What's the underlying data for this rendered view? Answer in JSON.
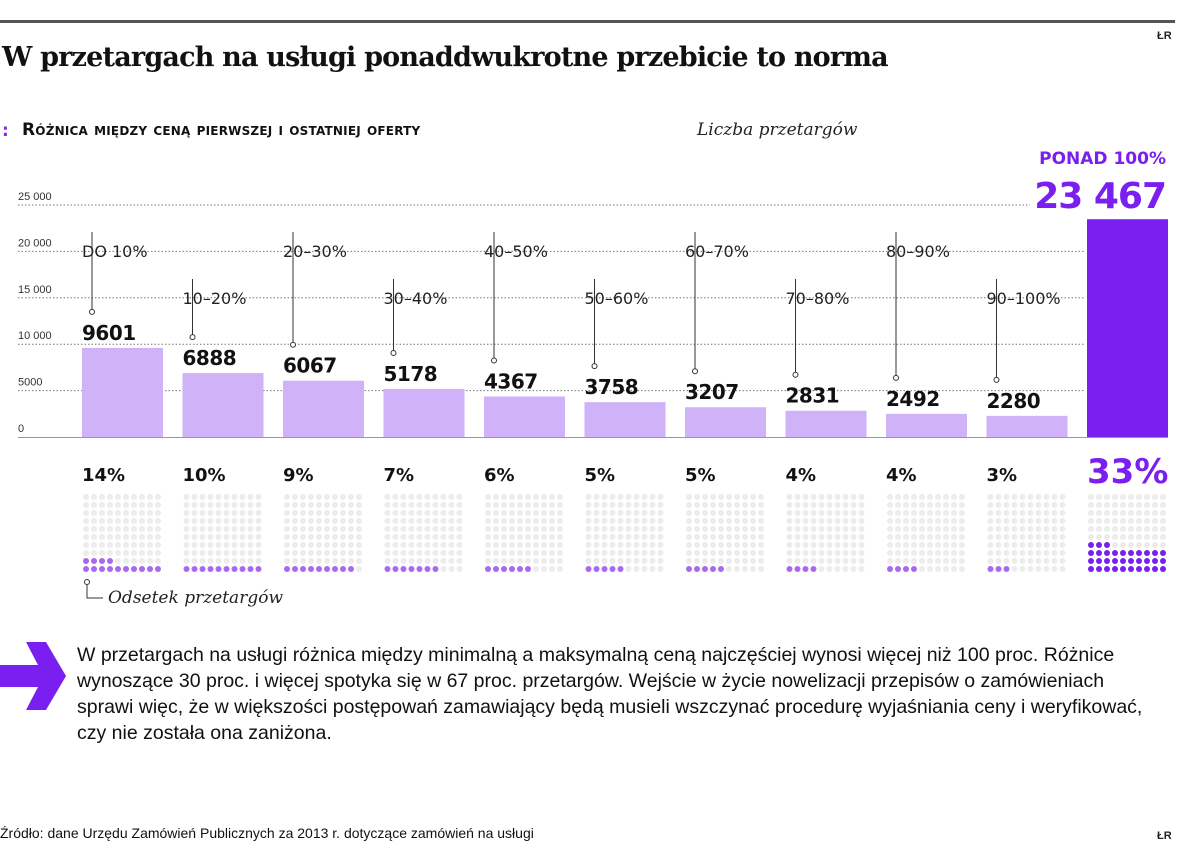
{
  "header": {
    "title": "W przetargach na usługi ponaddwukrotne przebicie to norma",
    "logo": "ŁR"
  },
  "chart_data": {
    "type": "bar",
    "title": "Różnica między ceną pierwszej i ostatniej oferty",
    "ylabel": "Liczba przetargów",
    "ylim": [
      0,
      25000
    ],
    "yticks": [
      0,
      5000,
      10000,
      15000,
      20000,
      25000
    ],
    "ytick_labels": [
      "0",
      "5000",
      "10 000",
      "15 000",
      "20 000",
      "25 000"
    ],
    "grid": true,
    "categories": [
      "DO 10%",
      "10–20%",
      "20–30%",
      "30–40%",
      "40–50%",
      "50–60%",
      "60–70%",
      "70–80%",
      "80–90%",
      "90–100%",
      "PONAD 100%"
    ],
    "values": [
      9601,
      6888,
      6067,
      5178,
      4367,
      3758,
      3207,
      2831,
      2492,
      2280,
      23467
    ],
    "value_labels": [
      "9601",
      "6888",
      "6067",
      "5178",
      "4367",
      "3758",
      "3207",
      "2831",
      "2492",
      "2280",
      "23 467"
    ],
    "share_label": "Odsetek przetargów",
    "share_percent": [
      14,
      10,
      9,
      7,
      6,
      5,
      5,
      4,
      4,
      3,
      33
    ],
    "share_labels": [
      "14%",
      "10%",
      "9%",
      "7%",
      "6%",
      "5%",
      "5%",
      "4%",
      "4%",
      "3%",
      "33%"
    ],
    "highlight_index": 10,
    "colors": {
      "bar": "#cfb2f7",
      "highlight": "#7a1ff0",
      "dot_empty": "#ececec",
      "dot_filled": "#a868f0",
      "dot_highlight": "#7a1ff0"
    }
  },
  "note": {
    "text": "W przetargach na usługi różnica między minimalną a maksymalną ceną najczęściej wynosi więcej niż 100 proc. Różnice wynoszące 30 proc. i więcej spotyka się w 67 proc. przetargów. Wejście w życie nowelizacji przepisów o zamówieniach sprawi więc, że w większości postępowań zamawiający będą musieli wszczynać procedurę wyjaśniania ceny i weryfikować, czy nie została ona zaniżona.",
    "icon": "arrow-right-icon"
  },
  "footer": {
    "source": "Źródło: dane Urzędu Zamówień Publicznych za 2013 r. dotyczące zamówień na usługi",
    "logo": "ŁR"
  }
}
